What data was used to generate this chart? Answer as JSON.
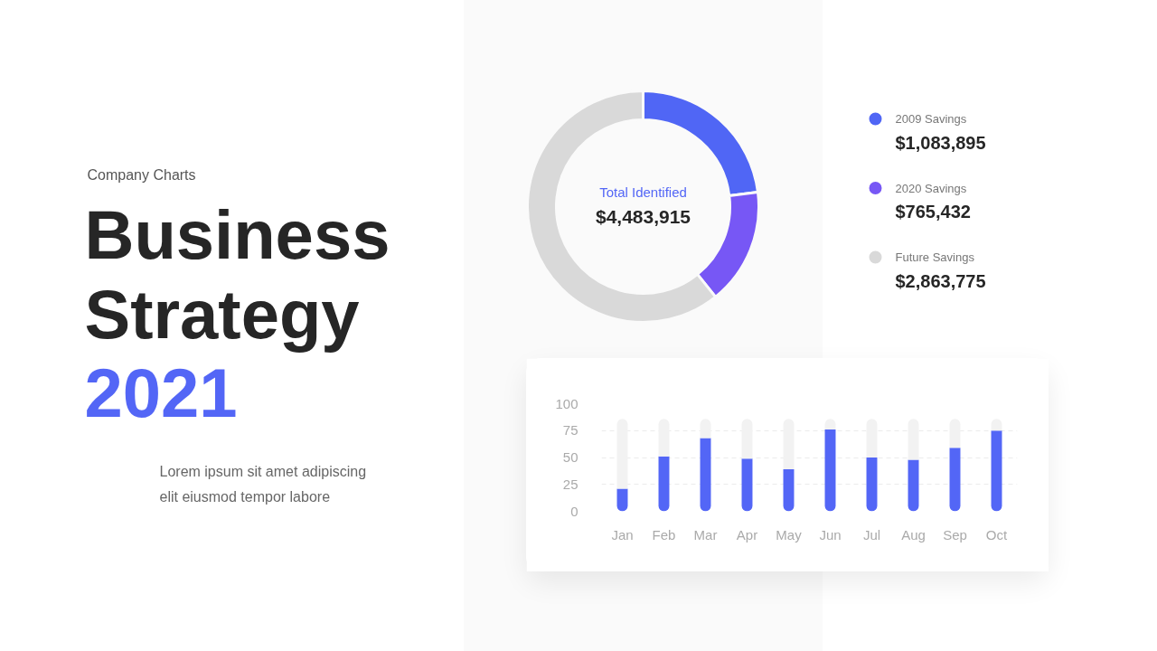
{
  "chart_data": [
    {
      "type": "other",
      "subtitle": "Company Charts",
      "title": "Business Strategy 2021",
      "annotations": [
        "Lorem ipsum sit amet adipiscing elit eiusmod tempor labore"
      ]
    },
    {
      "type": "donut",
      "categories": [
        "2009 Savings",
        "2020 Savings",
        "Future Savings"
      ],
      "values": [
        1083895,
        765432,
        2863775
      ],
      "colors": [
        "#5066f5",
        "#7757f5",
        "#d9d9d9"
      ],
      "value_labels": [
        "$1,083,895",
        "$765,432",
        "$2,863,775"
      ],
      "legend": "right",
      "annotations": [
        "Total Identified",
        "$4,483,915"
      ]
    },
    {
      "type": "bar",
      "categories": [
        "Jan",
        "Feb",
        "Mar",
        "Apr",
        "May",
        "Jun",
        "Jul",
        "Aug",
        "Sep",
        "Oct"
      ],
      "stacked": true,
      "series": [
        {
          "color": "#5366f6",
          "values": [
            21,
            51,
            68,
            49,
            39,
            76,
            50,
            48,
            59,
            75
          ]
        },
        {
          "color": "#f2f2f2",
          "values": [
            65,
            35,
            18,
            37,
            47,
            10,
            36,
            38,
            27,
            11
          ]
        }
      ],
      "ylim": [
        0,
        100
      ],
      "yticks": [
        0,
        25,
        50,
        75,
        100
      ],
      "grid": "y"
    }
  ]
}
